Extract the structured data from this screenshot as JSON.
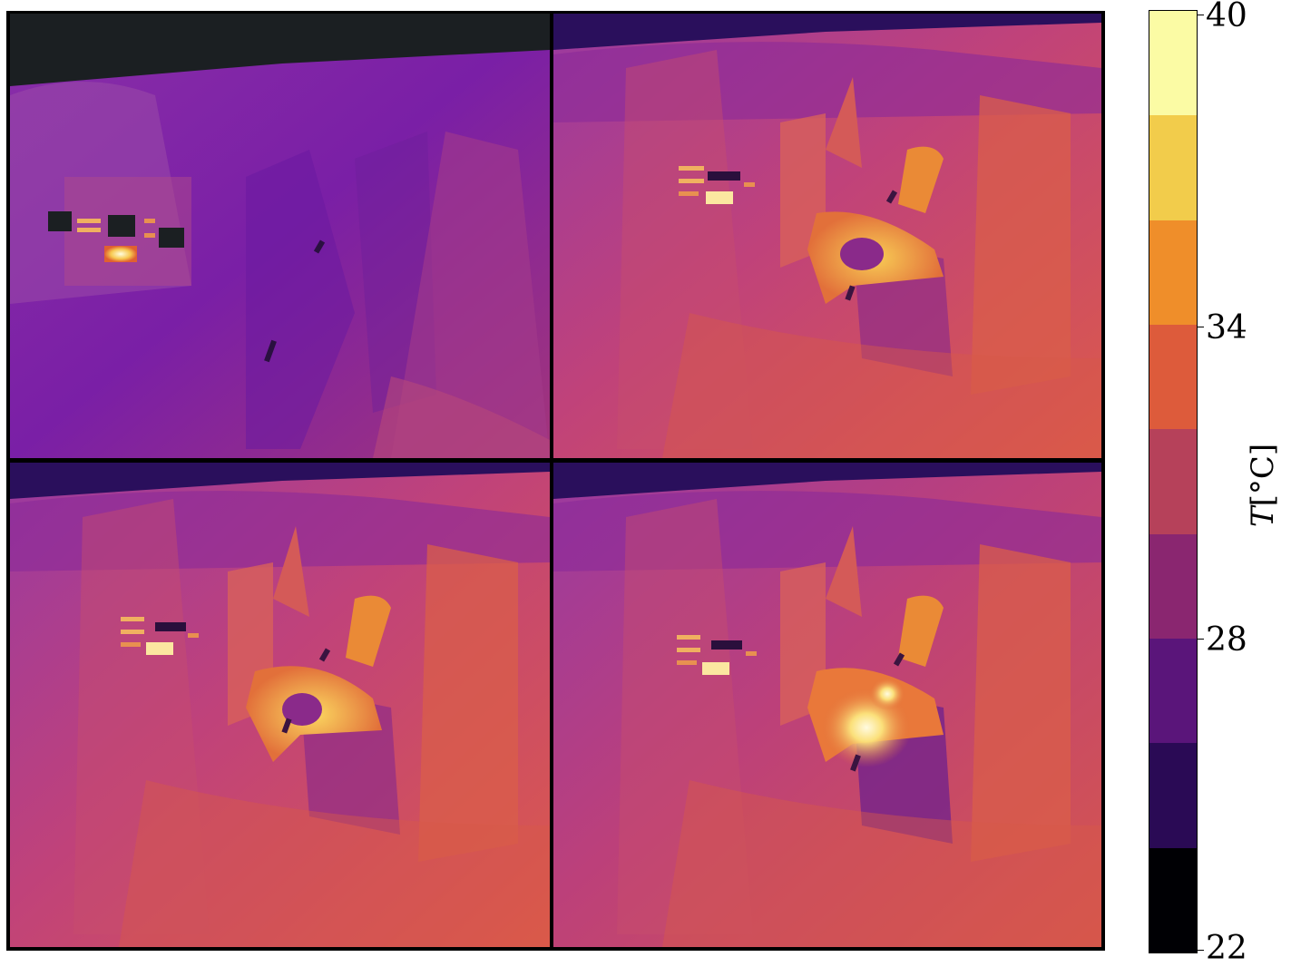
{
  "figure": {
    "panels": [
      {
        "id": "panel-1",
        "state": "cold",
        "ambient": "#7a1fa6",
        "background": "#1b1f22"
      },
      {
        "id": "panel-2",
        "state": "heated",
        "ambient": "#c8436d",
        "background": "#2a0f5c"
      },
      {
        "id": "panel-3",
        "state": "heated",
        "ambient": "#c8436d",
        "background": "#2a0f5c"
      },
      {
        "id": "panel-4",
        "state": "hot-spot",
        "ambient": "#c03f72",
        "background": "#2a0f5c"
      }
    ]
  },
  "colorbar": {
    "label_var": "T",
    "label_unit": "[°C]",
    "range": [
      22,
      40
    ],
    "ticks": [
      "40",
      "34",
      "28",
      "22"
    ],
    "tick_values": [
      40,
      34,
      28,
      22
    ],
    "colormap": "inferno",
    "bands": [
      "#fbfba4",
      "#f2cc4b",
      "#ef8e2a",
      "#dd5b3b",
      "#b6415a",
      "#8a2670",
      "#5a157a",
      "#2a0a55",
      "#000004"
    ]
  }
}
